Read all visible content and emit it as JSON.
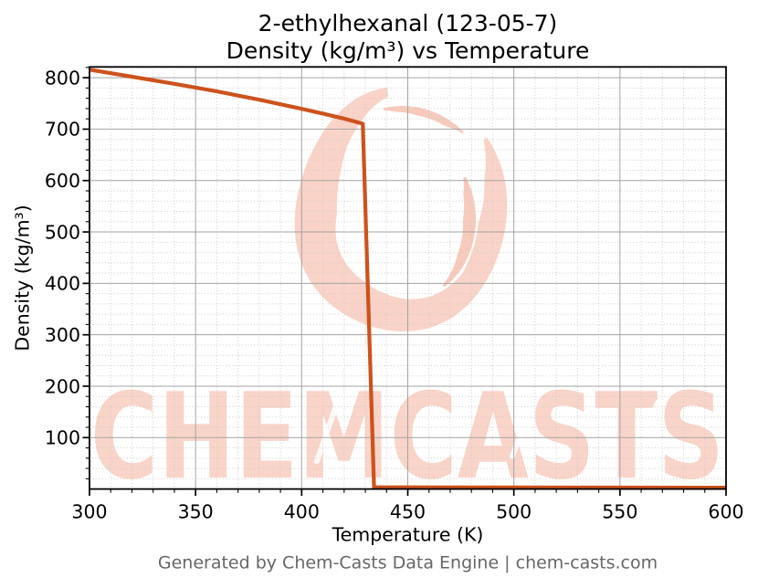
{
  "chart_data": {
    "type": "line",
    "title_lines": [
      "2-ethylhexanal (123-05-7)",
      "Density (kg/m³) vs Temperature"
    ],
    "xlabel": "Temperature (K)",
    "ylabel": "Density (kg/m³)",
    "xlim": [
      300,
      600
    ],
    "ylim": [
      0,
      821
    ],
    "x_ticks_major": [
      300,
      350,
      400,
      450,
      500,
      550,
      600
    ],
    "x_tick_labels": [
      "300",
      "350",
      "400",
      "450",
      "500",
      "550",
      "600"
    ],
    "x_minor_step": 10,
    "y_ticks_major": [
      100,
      200,
      300,
      400,
      500,
      600,
      700,
      800
    ],
    "y_tick_labels": [
      "100",
      "200",
      "300",
      "400",
      "500",
      "600",
      "700",
      "800"
    ],
    "y_minor_step": 20,
    "grid": {
      "major": true,
      "minor": true,
      "major_color": "#a3a3a3",
      "minor_color": "#cccccc"
    },
    "legend": "none",
    "series": [
      {
        "name": "Density (kg/m³)",
        "color": "#cd521c",
        "line_width": 4.2,
        "x": [
          300,
          320,
          340,
          360,
          380,
          400,
          410,
          420,
          428.8,
          434.1,
          450,
          500,
          550,
          600
        ],
        "y": [
          815.6,
          802.0,
          788.2,
          773.5,
          757.2,
          739.6,
          730.2,
          720.4,
          710.6,
          3.4,
          3.3,
          3.0,
          2.8,
          2.7
        ]
      }
    ]
  },
  "watermark": {
    "text": "CHEMCASTS",
    "color": "#f8cfc2"
  },
  "footer": {
    "text": "Generated by Chem-Casts Data Engine | chem-casts.com"
  },
  "style": {
    "background": "#ffffff",
    "accent": "#cd521c",
    "spine_color": "#000000",
    "footer_color": "#666666"
  }
}
